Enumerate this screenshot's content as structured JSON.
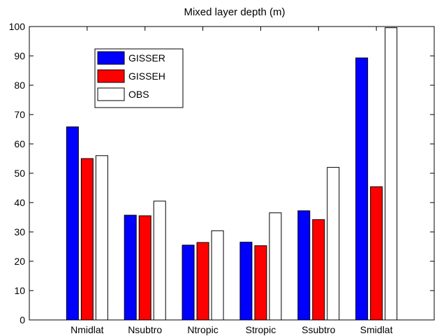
{
  "chart_data": {
    "type": "bar",
    "title": "Mixed layer depth (m)",
    "xlabel": "",
    "ylabel": "",
    "categories": [
      "Nmidlat",
      "Nsubtro",
      "Ntropic",
      "Stropic",
      "Ssubtro",
      "Smidlat"
    ],
    "ylim": [
      0,
      100
    ],
    "yticks": [
      0,
      10,
      20,
      30,
      40,
      50,
      60,
      70,
      80,
      90,
      100
    ],
    "grid": false,
    "legend_position": "top-left",
    "series": [
      {
        "name": "GISSER",
        "color": "#0000ff",
        "values": [
          65.8,
          35.7,
          25.5,
          26.5,
          37.2,
          89.3
        ]
      },
      {
        "name": "GISSEH",
        "color": "#ff0000",
        "values": [
          55.0,
          35.5,
          26.4,
          25.3,
          34.2,
          45.4
        ]
      },
      {
        "name": "OBS",
        "color": "#ffffff",
        "values": [
          56.0,
          40.5,
          30.4,
          36.5,
          52.0,
          99.6
        ]
      }
    ]
  }
}
